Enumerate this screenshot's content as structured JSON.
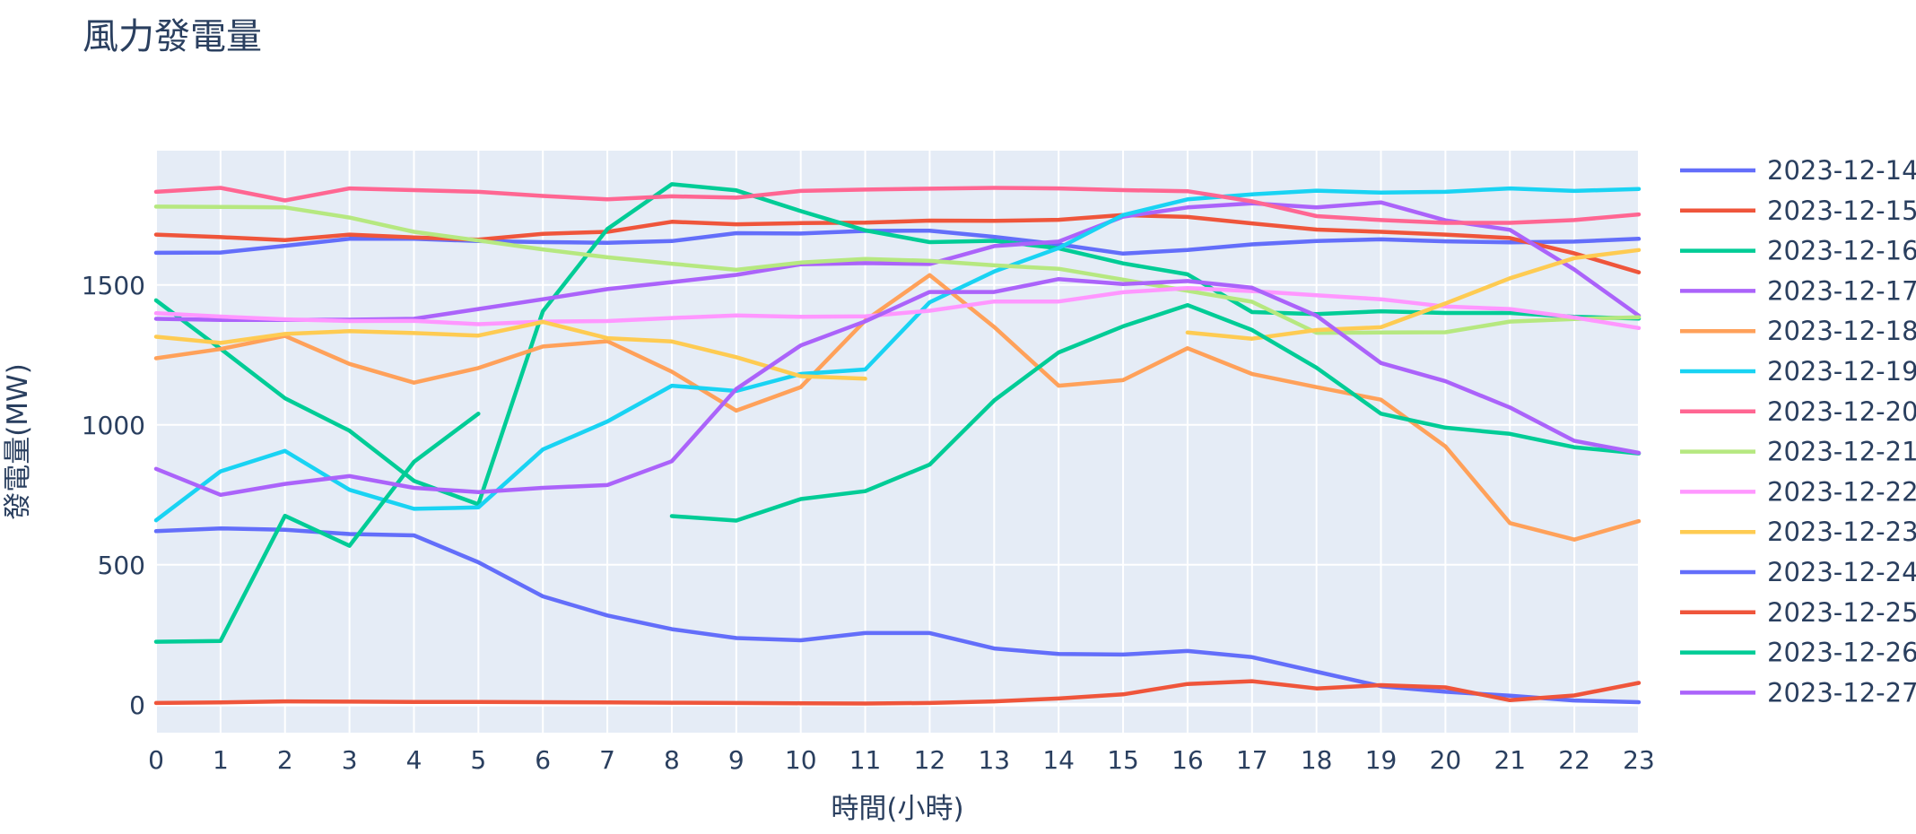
{
  "chart_data": {
    "type": "line",
    "title": "風力發電量",
    "xlabel": "時間(小時)",
    "ylabel": "發電量(MW)",
    "x": [
      0,
      1,
      2,
      3,
      4,
      5,
      6,
      7,
      8,
      9,
      10,
      11,
      12,
      13,
      14,
      15,
      16,
      17,
      18,
      19,
      20,
      21,
      22,
      23
    ],
    "xlim": [
      0,
      23
    ],
    "ylim": [
      -100,
      1980
    ],
    "yticks": [
      0,
      500,
      1000,
      1500
    ],
    "grid": true,
    "legend_position": "right",
    "series": [
      {
        "name": "2023-12-14",
        "color": "#636efa",
        "values": [
          1615,
          1616,
          1640,
          1665,
          1665,
          1657,
          1653,
          1651,
          1657,
          1685,
          1684,
          1693,
          1694,
          1672,
          1645,
          1612,
          1625,
          1645,
          1657,
          1663,
          1656,
          1652,
          1655,
          1665
        ]
      },
      {
        "name": "2023-12-15",
        "color": "#EF553B",
        "values": [
          1680,
          1671,
          1660,
          1680,
          1670,
          1662,
          1683,
          1690,
          1726,
          1717,
          1721,
          1723,
          1730,
          1729,
          1733,
          1750,
          1743,
          1720,
          1698,
          1690,
          1680,
          1668,
          1613,
          1545
        ]
      },
      {
        "name": "2023-12-16",
        "color": "#00cc96",
        "values": [
          1445,
          1272,
          1095,
          979,
          800,
          716,
          1406,
          1700,
          1860,
          1838,
          1764,
          1695,
          1653,
          1658,
          1631,
          1577,
          1538,
          1403,
          1396,
          1406,
          1400,
          1400,
          1386,
          1380
        ]
      },
      {
        "name": "2023-12-17",
        "color": "#ab63fa",
        "values": [
          1379,
          1375,
          1375,
          1376,
          1379,
          1414,
          1449,
          1485,
          1510,
          1536,
          1574,
          1578,
          1575,
          1639,
          1655,
          1744,
          1777,
          1792,
          1777,
          1795,
          1731,
          1697,
          1555,
          1390
        ]
      },
      {
        "name": "2023-12-18",
        "color": "#FFA15A",
        "values": [
          1238,
          1271,
          1318,
          1218,
          1151,
          1203,
          1280,
          1299,
          1190,
          1051,
          1135,
          1373,
          1535,
          1350,
          1140,
          1160,
          1274,
          1182,
          1135,
          1090,
          923,
          649,
          590,
          656
        ]
      },
      {
        "name": "2023-12-19",
        "color": "#19d3f3",
        "values": [
          659,
          834,
          907,
          768,
          700,
          705,
          912,
          1012,
          1140,
          1121,
          1182,
          1198,
          1438,
          1548,
          1632,
          1750,
          1806,
          1824,
          1837,
          1830,
          1833,
          1845,
          1836,
          1843
        ]
      },
      {
        "name": "2023-12-20",
        "color": "#FF6692",
        "values": [
          1833,
          1847,
          1802,
          1845,
          1839,
          1833,
          1818,
          1806,
          1817,
          1812,
          1836,
          1841,
          1844,
          1847,
          1845,
          1839,
          1835,
          1799,
          1746,
          1732,
          1722,
          1722,
          1732,
          1752
        ]
      },
      {
        "name": "2023-12-21",
        "color": "#B6E880",
        "values": [
          1780,
          1779,
          1777,
          1741,
          1690,
          1659,
          1627,
          1599,
          1576,
          1554,
          1580,
          1593,
          1586,
          1570,
          1558,
          1519,
          1479,
          1440,
          1329,
          1330,
          1331,
          1369,
          1378,
          1385
        ]
      },
      {
        "name": "2023-12-22",
        "color": "#FF97FF",
        "values": [
          1399,
          1387,
          1377,
          1371,
          1372,
          1360,
          1369,
          1371,
          1382,
          1391,
          1386,
          1388,
          1408,
          1441,
          1441,
          1474,
          1489,
          1478,
          1463,
          1449,
          1423,
          1414,
          1384,
          1346
        ]
      },
      {
        "name": "2023-12-23",
        "color": "#FECB52",
        "values": [
          1315,
          1293,
          1325,
          1335,
          1328,
          1319,
          1368,
          1310,
          1298,
          1242,
          1174,
          1165,
          null,
          null,
          null,
          null,
          1330,
          1308,
          1339,
          1349,
          1434,
          1524,
          1596,
          1625
        ]
      },
      {
        "name": "2023-12-24",
        "color": "#636efa",
        "values": [
          620,
          630,
          625,
          610,
          605,
          509,
          387,
          319,
          270,
          238,
          230,
          256,
          256,
          201,
          181,
          179,
          192,
          170,
          118,
          66,
          46,
          32,
          15,
          9
        ]
      },
      {
        "name": "2023-12-25",
        "color": "#EF553B",
        "values": [
          6,
          8,
          12,
          11,
          10,
          10,
          9,
          8,
          7,
          6,
          5,
          4,
          6,
          12,
          22,
          37,
          74,
          84,
          58,
          70,
          62,
          16,
          33,
          78
        ]
      },
      {
        "name": "2023-12-26",
        "color": "#00cc96",
        "values": [
          225,
          228,
          675,
          568,
          868,
          1040,
          null,
          null,
          674,
          658,
          735,
          763,
          858,
          1087,
          1259,
          1352,
          1428,
          1339,
          1204,
          1040,
          990,
          968,
          920,
          898
        ]
      },
      {
        "name": "2023-12-27",
        "color": "#ab63fa",
        "values": [
          843,
          750,
          789,
          817,
          775,
          760,
          775,
          785,
          870,
          1128,
          1284,
          1370,
          1475,
          1475,
          1521,
          1503,
          1514,
          1490,
          1390,
          1221,
          1156,
          1062,
          943,
          900
        ]
      }
    ]
  }
}
